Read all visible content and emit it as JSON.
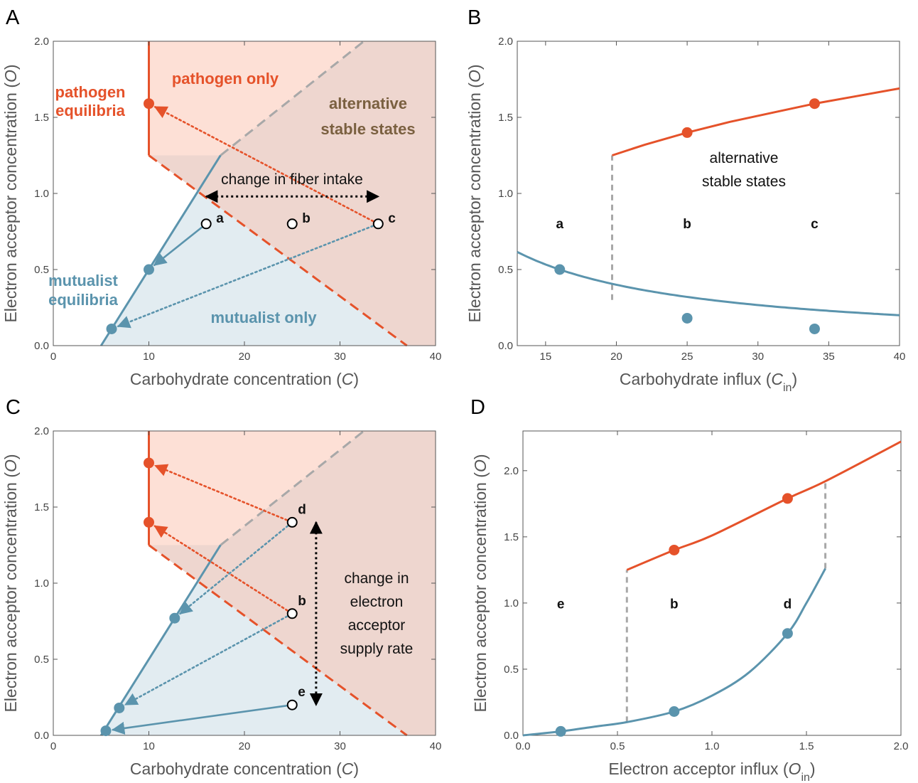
{
  "colors": {
    "mutualist": "#5b94ad",
    "pathogen": "#e5522a",
    "pathogen_fill": "#fde0d6",
    "mutualist_fill": "#e2ecf1",
    "alt_fill": "#eed6cf",
    "boundary_gray": "#a8a8a8",
    "alt_text": "#7a6040"
  },
  "icons": [
    "arrow-icon"
  ],
  "chart_data": [
    {
      "panel": "A",
      "type": "phase-plane",
      "xlabel": "Carbohydrate concentration (C)",
      "ylabel": "Electron acceptor concentration (O)",
      "xlim": [
        0,
        40
      ],
      "ylim": [
        0,
        2.0
      ],
      "xticks": [
        "0",
        "10",
        "20",
        "30",
        "40"
      ],
      "yticks": [
        "0.0",
        "0.5",
        "1.0",
        "1.5",
        "2.0"
      ],
      "regions": [
        "pathogen only",
        "alternative stable states",
        "mutualist only"
      ],
      "labels": [
        "pathogen equilibria",
        "mutualist equilibria"
      ],
      "annotation": "change in fiber intake",
      "boundaries": {
        "pathogen_vertical": [
          [
            10,
            1.25
          ],
          [
            10,
            2.0
          ]
        ],
        "mutualist_line": [
          [
            5.0,
            0
          ],
          [
            17.5,
            1.25
          ]
        ],
        "mutualist_extension": [
          [
            17.5,
            1.25
          ],
          [
            32.5,
            2.0
          ]
        ],
        "pathogen_boundary": [
          [
            10,
            1.25
          ],
          [
            37,
            0
          ]
        ]
      },
      "open_points": [
        {
          "label": "a",
          "x": 16,
          "y": 0.8
        },
        {
          "label": "b",
          "x": 25,
          "y": 0.8
        },
        {
          "label": "c",
          "x": 34,
          "y": 0.8
        }
      ],
      "pathogen_points": [
        {
          "x": 10,
          "y": 1.59
        }
      ],
      "mutualist_points": [
        {
          "x": 10,
          "y": 0.5
        },
        {
          "x": 6.1,
          "y": 0.11
        }
      ],
      "trajectories": [
        {
          "from": [
            16,
            0.8
          ],
          "to": [
            10,
            0.5
          ],
          "style": "solid",
          "color": "mutualist"
        },
        {
          "from": [
            34,
            0.8
          ],
          "to": [
            10,
            1.59
          ],
          "style": "dotted",
          "color": "pathogen"
        },
        {
          "from": [
            34,
            0.8
          ],
          "to": [
            6.1,
            0.11
          ],
          "style": "dotted",
          "color": "mutualist"
        }
      ],
      "double_arrow": {
        "from": [
          16,
          0.98
        ],
        "to": [
          34,
          0.98
        ]
      }
    },
    {
      "panel": "B",
      "type": "line",
      "xlabel": "Carbohydrate influx (C_in)",
      "ylabel": "Electron acceptor concentration (O)",
      "xlim": [
        13,
        40
      ],
      "ylim": [
        0,
        2.0
      ],
      "xticks": [
        "15",
        "20",
        "25",
        "30",
        "35",
        "40"
      ],
      "yticks": [
        "0.0",
        "0.5",
        "1.0",
        "1.5",
        "2.0"
      ],
      "annotation": "alternative stable states",
      "point_labels": [
        {
          "label": "a",
          "x": 16
        },
        {
          "label": "b",
          "x": 25
        },
        {
          "label": "c",
          "x": 34
        }
      ],
      "series": [
        {
          "color": "mutualist",
          "form": "O = 8 / C_in",
          "x_range": [
            13,
            40
          ]
        },
        {
          "color": "pathogen",
          "x": [
            19.7,
            22,
            25,
            28,
            31,
            34,
            37,
            40
          ],
          "y": [
            1.25,
            1.32,
            1.4,
            1.47,
            1.53,
            1.59,
            1.64,
            1.69
          ]
        }
      ],
      "markers": [
        {
          "series": "mutualist",
          "x": 16,
          "y": 0.5
        },
        {
          "series": "mutualist",
          "x": 25,
          "y": 0.18
        },
        {
          "series": "mutualist",
          "x": 34,
          "y": 0.11
        },
        {
          "series": "pathogen",
          "x": 25,
          "y": 1.4
        },
        {
          "series": "pathogen",
          "x": 34,
          "y": 1.59
        }
      ],
      "bifurcation": {
        "x": 19.7,
        "y_range": [
          0.3,
          1.25
        ]
      }
    },
    {
      "panel": "C",
      "type": "phase-plane",
      "xlabel": "Carbohydrate concentration (C)",
      "ylabel": "Electron acceptor concentration (O)",
      "xlim": [
        0,
        40
      ],
      "ylim": [
        0,
        2.0
      ],
      "xticks": [
        "0",
        "10",
        "20",
        "30",
        "40"
      ],
      "yticks": [
        "0.0",
        "0.5",
        "1.0",
        "1.5",
        "2.0"
      ],
      "annotation": [
        "change in",
        "electron",
        "acceptor",
        "supply rate"
      ],
      "boundaries": {
        "pathogen_vertical": [
          [
            10,
            1.25
          ],
          [
            10,
            2.0
          ]
        ],
        "mutualist_line": [
          [
            5.0,
            0
          ],
          [
            17.5,
            1.25
          ]
        ],
        "mutualist_extension": [
          [
            17.5,
            1.25
          ],
          [
            32.5,
            2.0
          ]
        ],
        "pathogen_boundary": [
          [
            10,
            1.25
          ],
          [
            37,
            0
          ]
        ]
      },
      "open_points": [
        {
          "label": "d",
          "x": 25,
          "y": 1.4
        },
        {
          "label": "b",
          "x": 25,
          "y": 0.8
        },
        {
          "label": "e",
          "x": 25,
          "y": 0.2
        }
      ],
      "pathogen_points": [
        {
          "x": 10,
          "y": 1.79
        },
        {
          "x": 10,
          "y": 1.4
        }
      ],
      "mutualist_points": [
        {
          "x": 12.7,
          "y": 0.77
        },
        {
          "x": 6.9,
          "y": 0.18
        },
        {
          "x": 5.5,
          "y": 0.03
        }
      ],
      "trajectories": [
        {
          "from": [
            25,
            1.4
          ],
          "to": [
            10,
            1.79
          ],
          "style": "dotted",
          "color": "pathogen"
        },
        {
          "from": [
            25,
            0.8
          ],
          "to": [
            10,
            1.4
          ],
          "style": "dotted",
          "color": "pathogen"
        },
        {
          "from": [
            25,
            1.4
          ],
          "to": [
            12.7,
            0.77
          ],
          "style": "dotted",
          "color": "mutualist"
        },
        {
          "from": [
            25,
            0.8
          ],
          "to": [
            6.9,
            0.18
          ],
          "style": "dotted",
          "color": "mutualist"
        },
        {
          "from": [
            25,
            0.2
          ],
          "to": [
            5.5,
            0.03
          ],
          "style": "solid",
          "color": "mutualist"
        }
      ],
      "double_arrow": {
        "from": [
          27.5,
          1.4
        ],
        "to": [
          27.5,
          0.2
        ]
      }
    },
    {
      "panel": "D",
      "type": "line",
      "xlabel": "Electron acceptor influx (O_in)",
      "ylabel": "Electron acceptor concentration (O)",
      "xlim": [
        0,
        2.0
      ],
      "ylim": [
        0,
        2.3
      ],
      "xticks": [
        "0.0",
        "0.5",
        "1.0",
        "1.5",
        "2.0"
      ],
      "yticks": [
        "0.0",
        "0.5",
        "1.0",
        "1.5",
        "2.0"
      ],
      "point_labels": [
        {
          "label": "e",
          "x": 0.2
        },
        {
          "label": "b",
          "x": 0.8
        },
        {
          "label": "d",
          "x": 1.4
        }
      ],
      "series": [
        {
          "color": "mutualist",
          "x": [
            0,
            0.2,
            0.4,
            0.55,
            0.8,
            1.0,
            1.2,
            1.4,
            1.5,
            1.6
          ],
          "y": [
            0,
            0.03,
            0.07,
            0.1,
            0.18,
            0.3,
            0.48,
            0.77,
            1.0,
            1.26
          ]
        },
        {
          "color": "pathogen",
          "x": [
            0.55,
            0.8,
            1.0,
            1.4,
            1.6,
            2.0
          ],
          "y": [
            1.25,
            1.4,
            1.51,
            1.79,
            1.92,
            2.22
          ]
        }
      ],
      "markers": [
        {
          "series": "mutualist",
          "x": 0.2,
          "y": 0.03
        },
        {
          "series": "mutualist",
          "x": 0.8,
          "y": 0.18
        },
        {
          "series": "mutualist",
          "x": 1.4,
          "y": 0.77
        },
        {
          "series": "pathogen",
          "x": 0.8,
          "y": 1.4
        },
        {
          "series": "pathogen",
          "x": 1.4,
          "y": 1.79
        }
      ],
      "bifurcations": [
        {
          "x": 0.55,
          "y_range": [
            0.1,
            1.25
          ]
        },
        {
          "x": 1.6,
          "y_range": [
            1.26,
            1.92
          ]
        }
      ]
    }
  ]
}
